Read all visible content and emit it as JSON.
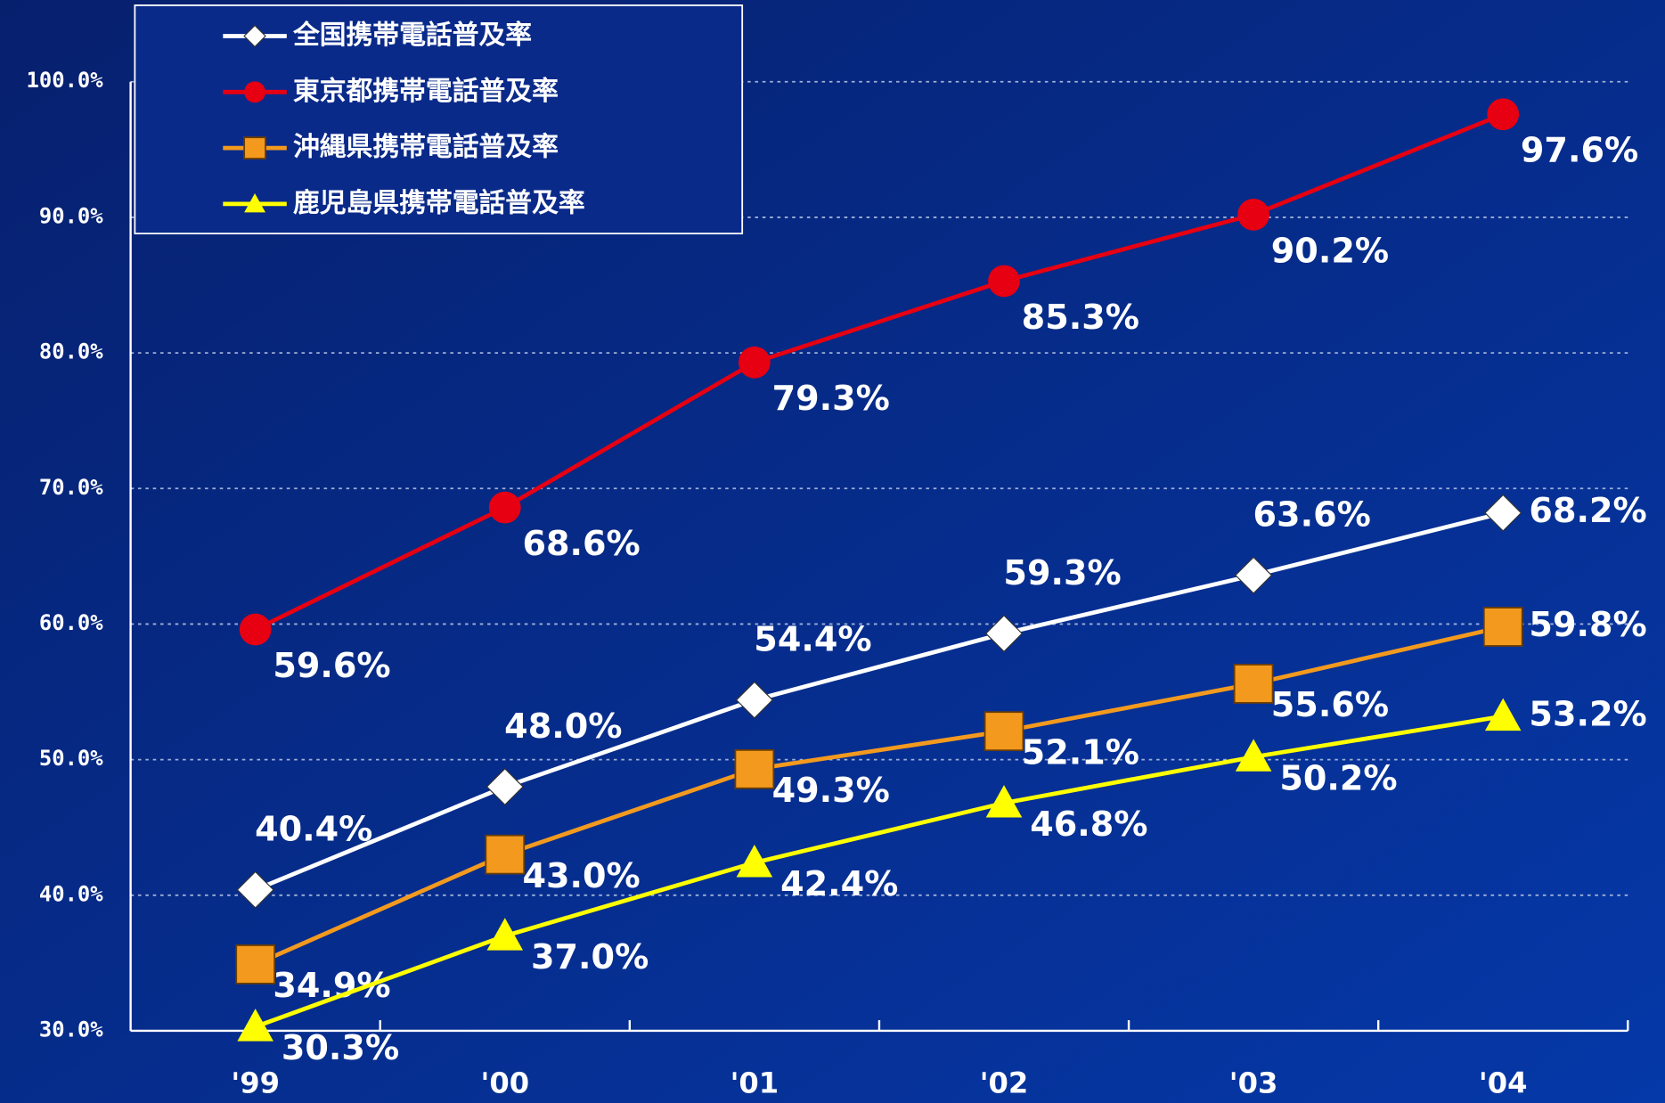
{
  "chart_data": {
    "type": "line",
    "categories": [
      "'99",
      "'00",
      "'01",
      "'02",
      "'03",
      "'04"
    ],
    "ylim": [
      30,
      100
    ],
    "yticks": [
      {
        "value": 30,
        "label": "30.0%"
      },
      {
        "value": 40,
        "label": "40.0%"
      },
      {
        "value": 50,
        "label": "50.0%"
      },
      {
        "value": 60,
        "label": "60.0%"
      },
      {
        "value": 70,
        "label": "70.0%"
      },
      {
        "value": 80,
        "label": "80.0%"
      },
      {
        "value": 90,
        "label": "90.0%"
      },
      {
        "value": 100,
        "label": "100.0%"
      }
    ],
    "grid": true,
    "legend": "top-left",
    "series": [
      {
        "name": "全国携帯電話普及率",
        "color": "#ffffff",
        "marker": "diamond",
        "values": [
          40.4,
          48.0,
          54.4,
          59.3,
          63.6,
          68.2
        ],
        "value_labels": [
          "40.4%",
          "48.0%",
          "54.4%",
          "59.3%",
          "63.6%",
          "68.2%"
        ]
      },
      {
        "name": "東京都携帯電話普及率",
        "color": "#e60012",
        "marker": "circle",
        "values": [
          59.6,
          68.6,
          79.3,
          85.3,
          90.2,
          97.6
        ],
        "value_labels": [
          "59.6%",
          "68.6%",
          "79.3%",
          "85.3%",
          "90.2%",
          "97.6%"
        ]
      },
      {
        "name": "沖縄県携帯電話普及率",
        "color": "#f39a1e",
        "marker": "square",
        "values": [
          34.9,
          43.0,
          49.3,
          52.1,
          55.6,
          59.8
        ],
        "value_labels": [
          "34.9%",
          "43.0%",
          "49.3%",
          "52.1%",
          "55.6%",
          "59.8%"
        ]
      },
      {
        "name": "鹿児島県携帯電話普及率",
        "color": "#ffff00",
        "marker": "triangle",
        "values": [
          30.3,
          37.0,
          42.4,
          46.8,
          50.2,
          53.2
        ],
        "value_labels": [
          "30.3%",
          "37.0%",
          "42.4%",
          "46.8%",
          "50.2%",
          "53.2%"
        ]
      }
    ]
  }
}
